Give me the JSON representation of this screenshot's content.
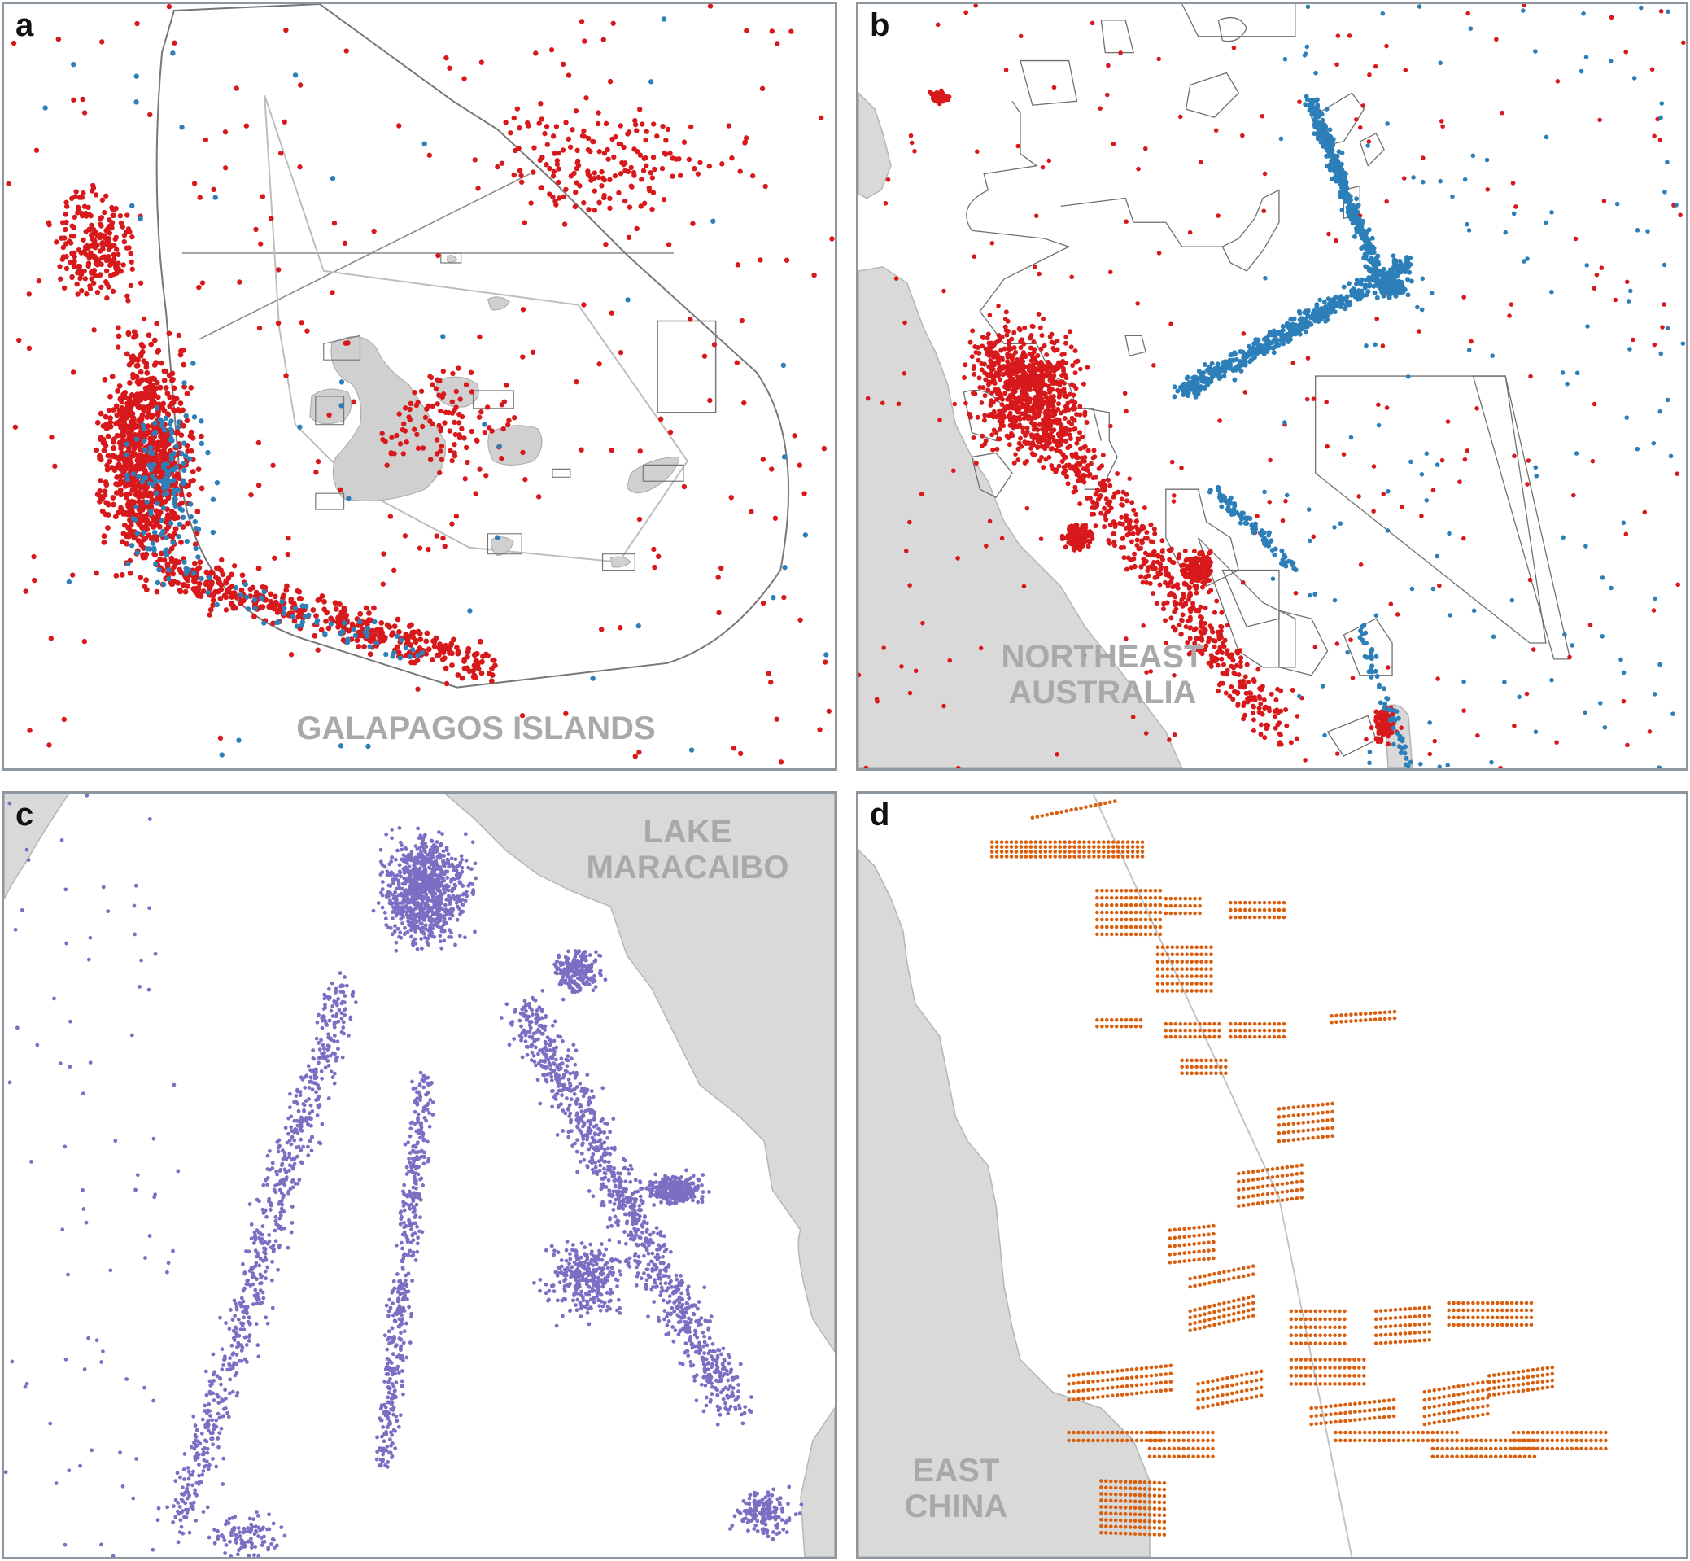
{
  "figure": {
    "panels": [
      {
        "id": "a",
        "label": "a",
        "region": [
          "GALAPAGOS ISLANDS"
        ]
      },
      {
        "id": "b",
        "label": "b",
        "region": [
          "NORTHEAST",
          "AUSTRALIA"
        ]
      },
      {
        "id": "c",
        "label": "c",
        "region": [
          "LAKE",
          "MARACAIBO"
        ]
      },
      {
        "id": "d",
        "label": "d",
        "region": [
          "EAST",
          "CHINA"
        ]
      }
    ]
  },
  "colors": {
    "red_points": "#d7191c",
    "blue_points": "#2c7fb8",
    "purple_points": "#7b6fc4",
    "orange_points": "#d95f0e",
    "land": "#d9d9d9",
    "boundary": "#777777",
    "frame": "#8e979f"
  }
}
